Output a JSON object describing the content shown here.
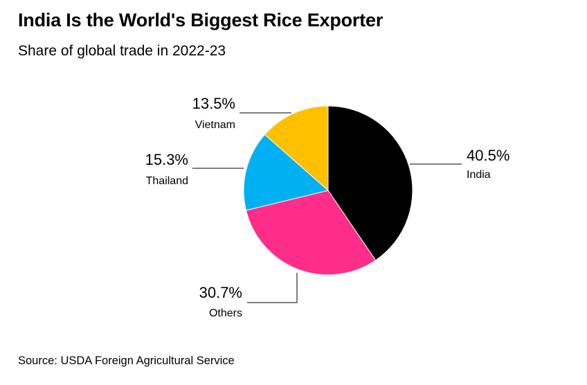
{
  "header": {
    "title": "India Is the World's Biggest Rice Exporter",
    "subtitle": "Share of global trade in 2022-23"
  },
  "footer": {
    "source": "Source: USDA Foreign Agricultural Service"
  },
  "chart_data": {
    "type": "pie",
    "title": "India Is the World's Biggest Rice Exporter",
    "subtitle": "Share of global trade in 2022-23",
    "start_angle_deg": 0,
    "direction": "clockwise",
    "slices": [
      {
        "name": "India",
        "value": 40.5,
        "label": "40.5%",
        "color": "#000000"
      },
      {
        "name": "Others",
        "value": 30.7,
        "label": "30.7%",
        "color": "#ff2d8a"
      },
      {
        "name": "Thailand",
        "value": 15.3,
        "label": "15.3%",
        "color": "#00b0f0"
      },
      {
        "name": "Vietnam",
        "value": 13.5,
        "label": "13.5%",
        "color": "#ffc000"
      }
    ]
  }
}
